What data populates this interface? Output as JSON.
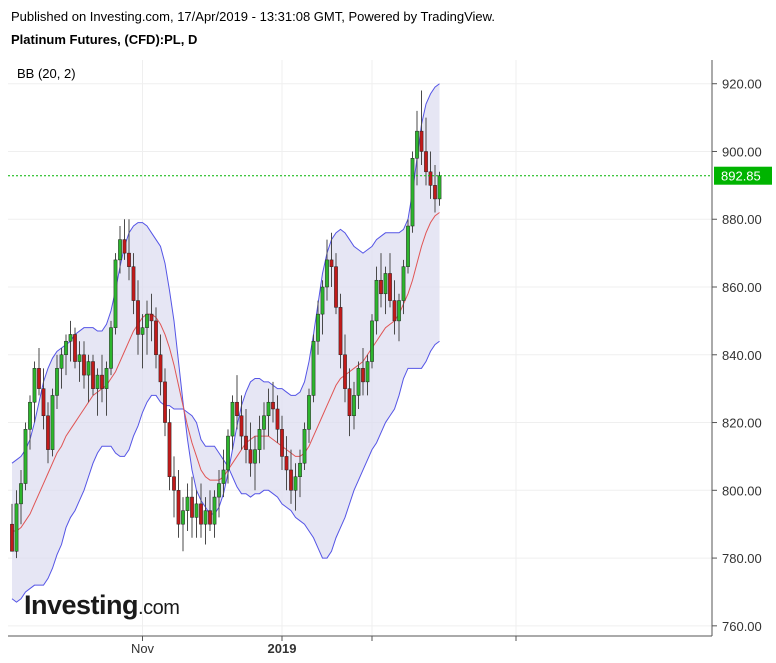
{
  "header": {
    "published": "Published on Investing.com, 17/Apr/2019 - 13:31:08 GMT, Powered by TradingView.",
    "instrument": "Platinum Futures, (CFD):PL, D"
  },
  "indicator_label": "BB (20, 2)",
  "logo": {
    "brand": "Investing",
    "domain": ".com"
  },
  "current_price": {
    "label": "892.85",
    "value": 892.85,
    "color": "#00b400"
  },
  "colors": {
    "up": "#2db52d",
    "down": "#c21a1a",
    "band_fill": "#dcdcf0",
    "band_line": "#5555e6",
    "basis": "#e05555"
  },
  "chart_data": {
    "type": "candlestick",
    "title": "Platinum Futures, (CFD):PL, D",
    "indicator": "BB (20, 2)",
    "ylim": [
      757,
      927
    ],
    "y_ticks": [
      760,
      780,
      800,
      820,
      840,
      860,
      880,
      900,
      920
    ],
    "y_tick_labels": [
      "760.00",
      "780.00",
      "800.00",
      "820.00",
      "840.00",
      "860.00",
      "880.00",
      "900.00",
      "920.00"
    ],
    "x_ticks": [
      {
        "label": "Nov",
        "index": 29,
        "bold": false
      },
      {
        "label": "2019",
        "index": 60,
        "bold": true
      },
      {
        "label": "",
        "index": 80,
        "bold": false
      },
      {
        "label": "",
        "index": 112,
        "bold": false
      }
    ],
    "ohlc": [
      [
        790,
        796,
        782,
        782
      ],
      [
        782,
        800,
        780,
        796
      ],
      [
        796,
        806,
        790,
        802
      ],
      [
        802,
        820,
        800,
        818
      ],
      [
        818,
        828,
        812,
        826
      ],
      [
        826,
        838,
        820,
        836
      ],
      [
        836,
        842,
        828,
        830
      ],
      [
        830,
        836,
        818,
        822
      ],
      [
        822,
        826,
        808,
        812
      ],
      [
        812,
        830,
        810,
        828
      ],
      [
        828,
        840,
        824,
        836
      ],
      [
        836,
        842,
        830,
        840
      ],
      [
        840,
        846,
        834,
        844
      ],
      [
        844,
        850,
        838,
        846
      ],
      [
        846,
        848,
        836,
        838
      ],
      [
        838,
        844,
        832,
        840
      ],
      [
        840,
        844,
        830,
        834
      ],
      [
        834,
        840,
        826,
        838
      ],
      [
        838,
        840,
        828,
        830
      ],
      [
        830,
        836,
        822,
        834
      ],
      [
        834,
        840,
        826,
        830
      ],
      [
        830,
        838,
        822,
        836
      ],
      [
        836,
        850,
        834,
        848
      ],
      [
        848,
        870,
        846,
        868
      ],
      [
        868,
        878,
        864,
        874
      ],
      [
        874,
        880,
        868,
        870
      ],
      [
        870,
        880,
        862,
        866
      ],
      [
        866,
        870,
        852,
        856
      ],
      [
        856,
        862,
        840,
        846
      ],
      [
        846,
        852,
        836,
        848
      ],
      [
        848,
        856,
        840,
        852
      ],
      [
        852,
        858,
        844,
        850
      ],
      [
        850,
        854,
        836,
        840
      ],
      [
        840,
        846,
        828,
        832
      ],
      [
        832,
        836,
        816,
        820
      ],
      [
        820,
        824,
        800,
        804
      ],
      [
        804,
        810,
        792,
        800
      ],
      [
        800,
        806,
        786,
        790
      ],
      [
        790,
        798,
        782,
        794
      ],
      [
        794,
        802,
        788,
        798
      ],
      [
        798,
        804,
        786,
        792
      ],
      [
        792,
        800,
        786,
        796
      ],
      [
        796,
        802,
        786,
        790
      ],
      [
        790,
        798,
        784,
        794
      ],
      [
        794,
        800,
        788,
        790
      ],
      [
        790,
        800,
        786,
        798
      ],
      [
        798,
        806,
        792,
        802
      ],
      [
        802,
        812,
        798,
        806
      ],
      [
        806,
        818,
        802,
        816
      ],
      [
        816,
        828,
        812,
        826
      ],
      [
        826,
        834,
        818,
        822
      ],
      [
        822,
        828,
        812,
        816
      ],
      [
        816,
        824,
        808,
        812
      ],
      [
        812,
        820,
        804,
        808
      ],
      [
        808,
        816,
        800,
        812
      ],
      [
        812,
        822,
        808,
        818
      ],
      [
        818,
        826,
        812,
        822
      ],
      [
        822,
        830,
        816,
        826
      ],
      [
        826,
        832,
        820,
        824
      ],
      [
        824,
        828,
        814,
        818
      ],
      [
        818,
        822,
        806,
        810
      ],
      [
        810,
        816,
        800,
        806
      ],
      [
        806,
        812,
        796,
        800
      ],
      [
        800,
        808,
        794,
        804
      ],
      [
        804,
        812,
        798,
        808
      ],
      [
        808,
        820,
        806,
        818
      ],
      [
        818,
        830,
        814,
        828
      ],
      [
        828,
        846,
        826,
        844
      ],
      [
        844,
        856,
        840,
        852
      ],
      [
        852,
        862,
        846,
        860
      ],
      [
        860,
        874,
        856,
        868
      ],
      [
        868,
        876,
        860,
        866
      ],
      [
        866,
        870,
        852,
        854
      ],
      [
        854,
        858,
        836,
        840
      ],
      [
        840,
        846,
        826,
        830
      ],
      [
        830,
        836,
        816,
        822
      ],
      [
        822,
        832,
        818,
        828
      ],
      [
        828,
        838,
        824,
        836
      ],
      [
        836,
        842,
        828,
        832
      ],
      [
        832,
        840,
        828,
        838
      ],
      [
        838,
        852,
        836,
        850
      ],
      [
        850,
        866,
        846,
        862
      ],
      [
        862,
        870,
        854,
        858
      ],
      [
        858,
        866,
        852,
        864
      ],
      [
        864,
        870,
        854,
        856
      ],
      [
        856,
        862,
        846,
        850
      ],
      [
        850,
        858,
        844,
        856
      ],
      [
        856,
        868,
        852,
        866
      ],
      [
        866,
        880,
        864,
        878
      ],
      [
        878,
        900,
        876,
        898
      ],
      [
        898,
        912,
        890,
        906
      ],
      [
        906,
        918,
        896,
        900
      ],
      [
        900,
        910,
        890,
        894
      ],
      [
        894,
        900,
        886,
        890
      ],
      [
        890,
        896,
        882,
        886
      ],
      [
        886,
        894,
        884,
        892.85
      ]
    ],
    "bb_upper": [
      808,
      809,
      810,
      812,
      815,
      820,
      826,
      832,
      836,
      839,
      841,
      842,
      843,
      844,
      846,
      847,
      848,
      848,
      848,
      847,
      847,
      849,
      853,
      859,
      866,
      872,
      876,
      878,
      879,
      879,
      878,
      876,
      874,
      872,
      867,
      859,
      850,
      838,
      826,
      815,
      806,
      800,
      797,
      795,
      793,
      793,
      795,
      799,
      805,
      812,
      819,
      825,
      829,
      832,
      833,
      833,
      832,
      832,
      831,
      830,
      830,
      829,
      828,
      828,
      829,
      832,
      838,
      846,
      855,
      864,
      870,
      874,
      876,
      877,
      876,
      874,
      872,
      871,
      870,
      871,
      872,
      874,
      875,
      876,
      876,
      876,
      876,
      877,
      880,
      888,
      898,
      908,
      914,
      917,
      919,
      920
    ],
    "bb_basis": [
      788,
      788,
      789,
      791,
      793,
      796,
      799,
      802,
      805,
      808,
      811,
      813,
      816,
      818,
      820,
      822,
      824,
      826,
      828,
      829,
      830,
      831,
      833,
      835,
      838,
      841,
      844,
      847,
      849,
      851,
      852,
      852,
      851,
      849,
      846,
      842,
      837,
      831,
      825,
      819,
      814,
      810,
      806,
      804,
      803,
      803,
      803,
      804,
      806,
      808,
      810,
      812,
      814,
      815,
      816,
      816,
      816,
      816,
      815,
      814,
      813,
      812,
      811,
      810,
      810,
      811,
      813,
      816,
      819,
      822,
      825,
      828,
      831,
      833,
      834,
      835,
      836,
      837,
      838,
      840,
      842,
      844,
      846,
      848,
      849,
      850,
      852,
      855,
      858,
      862,
      867,
      872,
      876,
      879,
      881,
      882
    ],
    "bb_lower": [
      768,
      767,
      768,
      770,
      771,
      772,
      772,
      772,
      774,
      777,
      781,
      784,
      789,
      792,
      794,
      797,
      800,
      804,
      808,
      811,
      813,
      813,
      813,
      811,
      810,
      810,
      812,
      816,
      819,
      823,
      826,
      828,
      828,
      826,
      825,
      825,
      824,
      824,
      824,
      823,
      822,
      820,
      815,
      813,
      813,
      813,
      811,
      809,
      807,
      804,
      801,
      799,
      799,
      798,
      799,
      799,
      800,
      800,
      799,
      798,
      796,
      795,
      794,
      792,
      791,
      790,
      788,
      786,
      783,
      780,
      780,
      782,
      786,
      789,
      792,
      796,
      800,
      803,
      806,
      809,
      812,
      814,
      817,
      820,
      822,
      824,
      828,
      833,
      836,
      836,
      836,
      836,
      838,
      841,
      843,
      844
    ]
  }
}
